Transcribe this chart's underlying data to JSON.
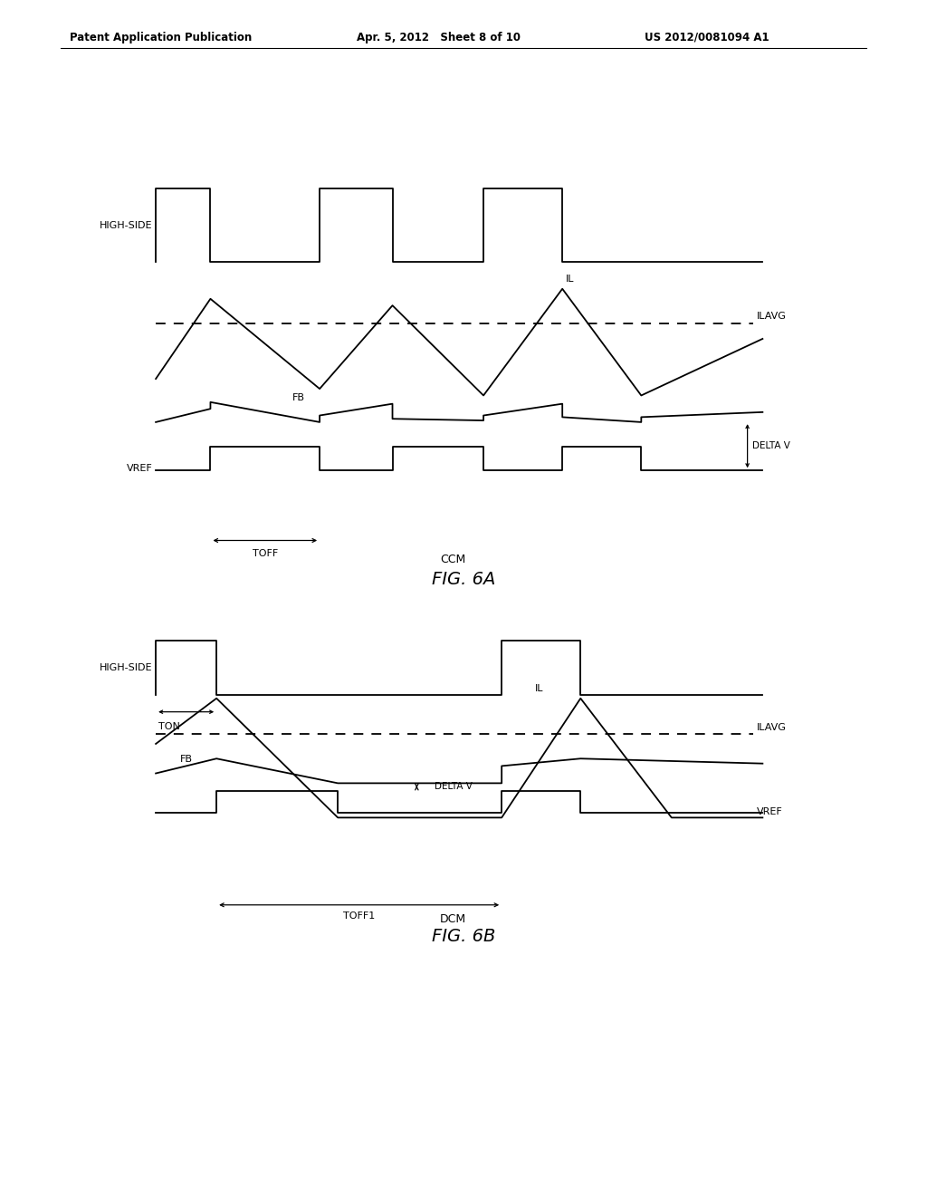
{
  "bg_color": "#ffffff",
  "line_color": "#000000",
  "header_left": "Patent Application Publication",
  "header_mid": "Apr. 5, 2012   Sheet 8 of 10",
  "header_right": "US 2012/0081094 A1",
  "fig6a_caption": "FIG. 6A",
  "fig6a_mode": "CCM",
  "fig6b_caption": "FIG. 6B",
  "fig6b_mode": "DCM",
  "lw": 1.3,
  "lw_arrow": 0.9,
  "fontsize_label": 8,
  "fontsize_caption": 14,
  "fontsize_mode": 9,
  "fontsize_header": 8.5
}
